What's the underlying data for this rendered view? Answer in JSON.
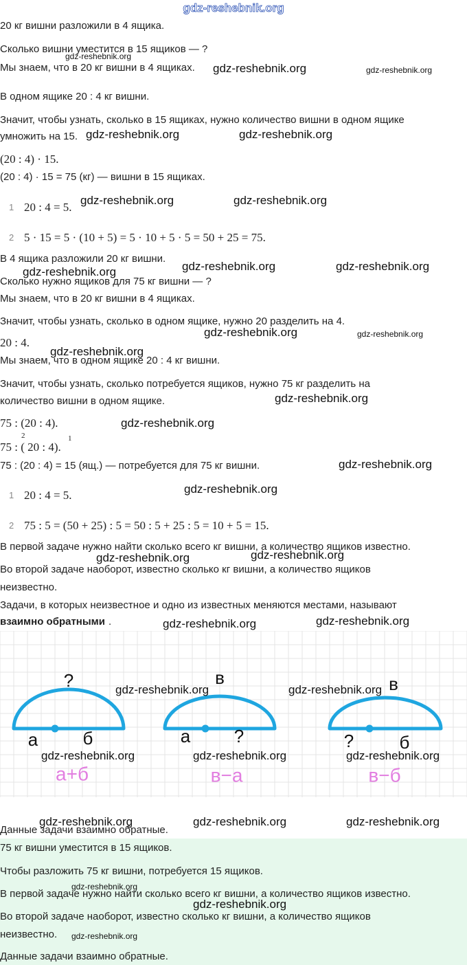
{
  "header_watermark": "gdz-reshebnik.org",
  "lines": [
    "20 кг вишни разложили в 4 ящика.",
    "Сколько вишни уместится в 15 ящиков — ?",
    "Мы знаем, что в 20 кг вишни в 4 ящиках.",
    "В одном ящике 20 : 4 кг вишни.",
    "Значит, чтобы узнать, сколько в 15 ящиках, нужно количество вишни в одном ящике",
    "умножить на 15.",
    "(20 : 4) · 15.",
    "(20 : 4) · 15 = 75 (кг) — вишни в 15 ящиках.",
    "1",
    "20 : 4 = 5.",
    "2",
    "5 · 15 = 5 · (10 + 5) = 5 · 10 + 5 · 5 = 50 + 25 = 75.",
    "В 4 ящика разложили 20 кг вишни.",
    "Сколько нужно ящиков для 75 кг вишни — ?",
    "Мы знаем, что в 20 кг вишни в 4 ящиках.",
    "Значит, чтобы узнать, сколько в одном ящике, нужно 20 разделить на 4.",
    "20 : 4.",
    "Мы знаем, что в одном ящике 20 : 4 кг вишни.",
    "Значит, чтобы узнать, сколько потребуется ящиков, нужно 75 кг разделить на",
    "количество вишни в одном ящике.",
    "75 : (20 : 4).",
    "2",
    "75 : ( 20 : 4).",
    "1",
    "75 : (20 : 4) = 15 (ящ.) — потребуется для 75 кг вишни.",
    "1",
    "20 : 4 = 5.",
    "2",
    "75 : 5 = (50 + 25) : 5 = 50 : 5 + 25 : 5 = 10 + 5 = 15.",
    "В первой задаче нужно найти сколько всего кг вишни, а количество ящиков известно.",
    "Во второй задаче наоборот, известно сколько кг вишни, а количество ящиков",
    "неизвестно.",
    "Задачи, в которых неизвестное и одно из известных меняются местами, называют",
    "взаимно обратными",
    ".",
    "Данные задачи взаимно обратные."
  ],
  "diagram": [
    {
      "labels": [
        "?",
        "а",
        "б"
      ],
      "formula": "а+б"
    },
    {
      "labels": [
        "в",
        "а",
        "?"
      ],
      "formula": "в−а"
    },
    {
      "labels": [
        "в",
        "?",
        "б"
      ],
      "formula": "в−б"
    }
  ],
  "answer": [
    "75 кг вишни уместится в 15 ящиков.",
    "Чтобы разложить 75 кг вишни, потребуется 15 ящиков.",
    "В первой задаче нужно найти сколько всего кг вишни, а количество ящиков известно.",
    "Во второй задаче наоборот, известно сколько кг вишни, а количество ящиков",
    "неизвестно.",
    "Данные задачи взаимно обратные."
  ],
  "watermarks": [
    "gdz-reshebnik.org",
    "gdz-reshebnik.org",
    "gdz-reshebnik.org",
    "gdz-reshebnik.org",
    "gdz-reshebnik.org",
    "gdz-reshebnik.org",
    "gdz-reshebnik.org",
    "gdz-reshebnik.org",
    "gdz-reshebnik.org",
    "gdz-reshebnik.org",
    "gdz-reshebnik.org",
    "gdz-reshebnik.org",
    "gdz-reshebnik.org",
    "gdz-reshebnik.org",
    "gdz-reshebnik.org",
    "gdz-reshebnik.org",
    "gdz-reshebnik.org",
    "gdz-reshebnik.org",
    "gdz-reshebnik.org",
    "gdz-reshebnik.org",
    "gdz-reshebnik.org",
    "gdz-reshebnik.org",
    "gdz-reshebnik.org",
    "gdz-reshebnik.org",
    "gdz-reshebnik.org",
    "gdz-reshebnik.org",
    "gdz-reshebnik.org",
    "gdz-reshebnik.org",
    "gdz-reshebnik.org",
    "gdz-reshebnik.org",
    "gdz-reshebnik.org",
    "gdz-reshebnik.org"
  ]
}
